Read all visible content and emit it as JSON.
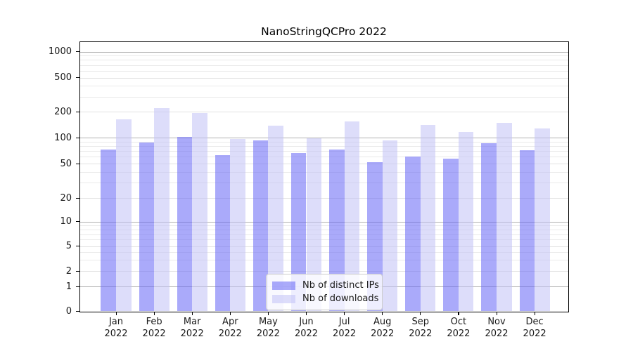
{
  "title": "NanoStringQCPro 2022",
  "chart_data": {
    "type": "bar",
    "title": "NanoStringQCPro 2022",
    "categories": [
      "Jan 2022",
      "Feb 2022",
      "Mar 2022",
      "Apr 2022",
      "May 2022",
      "Jun 2022",
      "Jul 2022",
      "Aug 2022",
      "Sep 2022",
      "Oct 2022",
      "Nov 2022",
      "Dec 2022"
    ],
    "months": [
      {
        "month": "Jan",
        "year": "2022"
      },
      {
        "month": "Feb",
        "year": "2022"
      },
      {
        "month": "Mar",
        "year": "2022"
      },
      {
        "month": "Apr",
        "year": "2022"
      },
      {
        "month": "May",
        "year": "2022"
      },
      {
        "month": "Jun",
        "year": "2022"
      },
      {
        "month": "Jul",
        "year": "2022"
      },
      {
        "month": "Aug",
        "year": "2022"
      },
      {
        "month": "Sep",
        "year": "2022"
      },
      {
        "month": "Oct",
        "year": "2022"
      },
      {
        "month": "Nov",
        "year": "2022"
      },
      {
        "month": "Dec",
        "year": "2022"
      }
    ],
    "series": [
      {
        "name": "Nb of distinct IPs",
        "color": "rgba(101,101,245,0.55)",
        "values": [
          73,
          88,
          101,
          63,
          92,
          66,
          73,
          52,
          61,
          57,
          86,
          71
        ]
      },
      {
        "name": "Nb of downloads",
        "color": "rgba(193,193,245,0.55)",
        "values": [
          164,
          221,
          194,
          97,
          137,
          99,
          153,
          92,
          140,
          116,
          148,
          127
        ]
      }
    ],
    "ylabel": "",
    "xlabel": "",
    "yscale": "log-like (linear below 1, 0 shown at axis base)",
    "ylim": [
      0,
      1300
    ],
    "yticks": [
      1000,
      500,
      200,
      100,
      50,
      20,
      10,
      5,
      2,
      1,
      0
    ],
    "minor_gridlines": [
      900,
      800,
      700,
      600,
      400,
      300,
      90,
      80,
      70,
      60,
      40,
      30,
      9,
      8,
      7,
      6,
      4,
      3
    ],
    "grid": true,
    "legend_position": "lower center",
    "colors": {
      "major_gridline": "#b0b0b0",
      "minor_gridline": "#e9e9e9",
      "labeled_gridline": "#e2e2e2",
      "bar_dark_rendered": "#a8a8f8",
      "bar_light_rendered": "#dadaf8"
    }
  }
}
